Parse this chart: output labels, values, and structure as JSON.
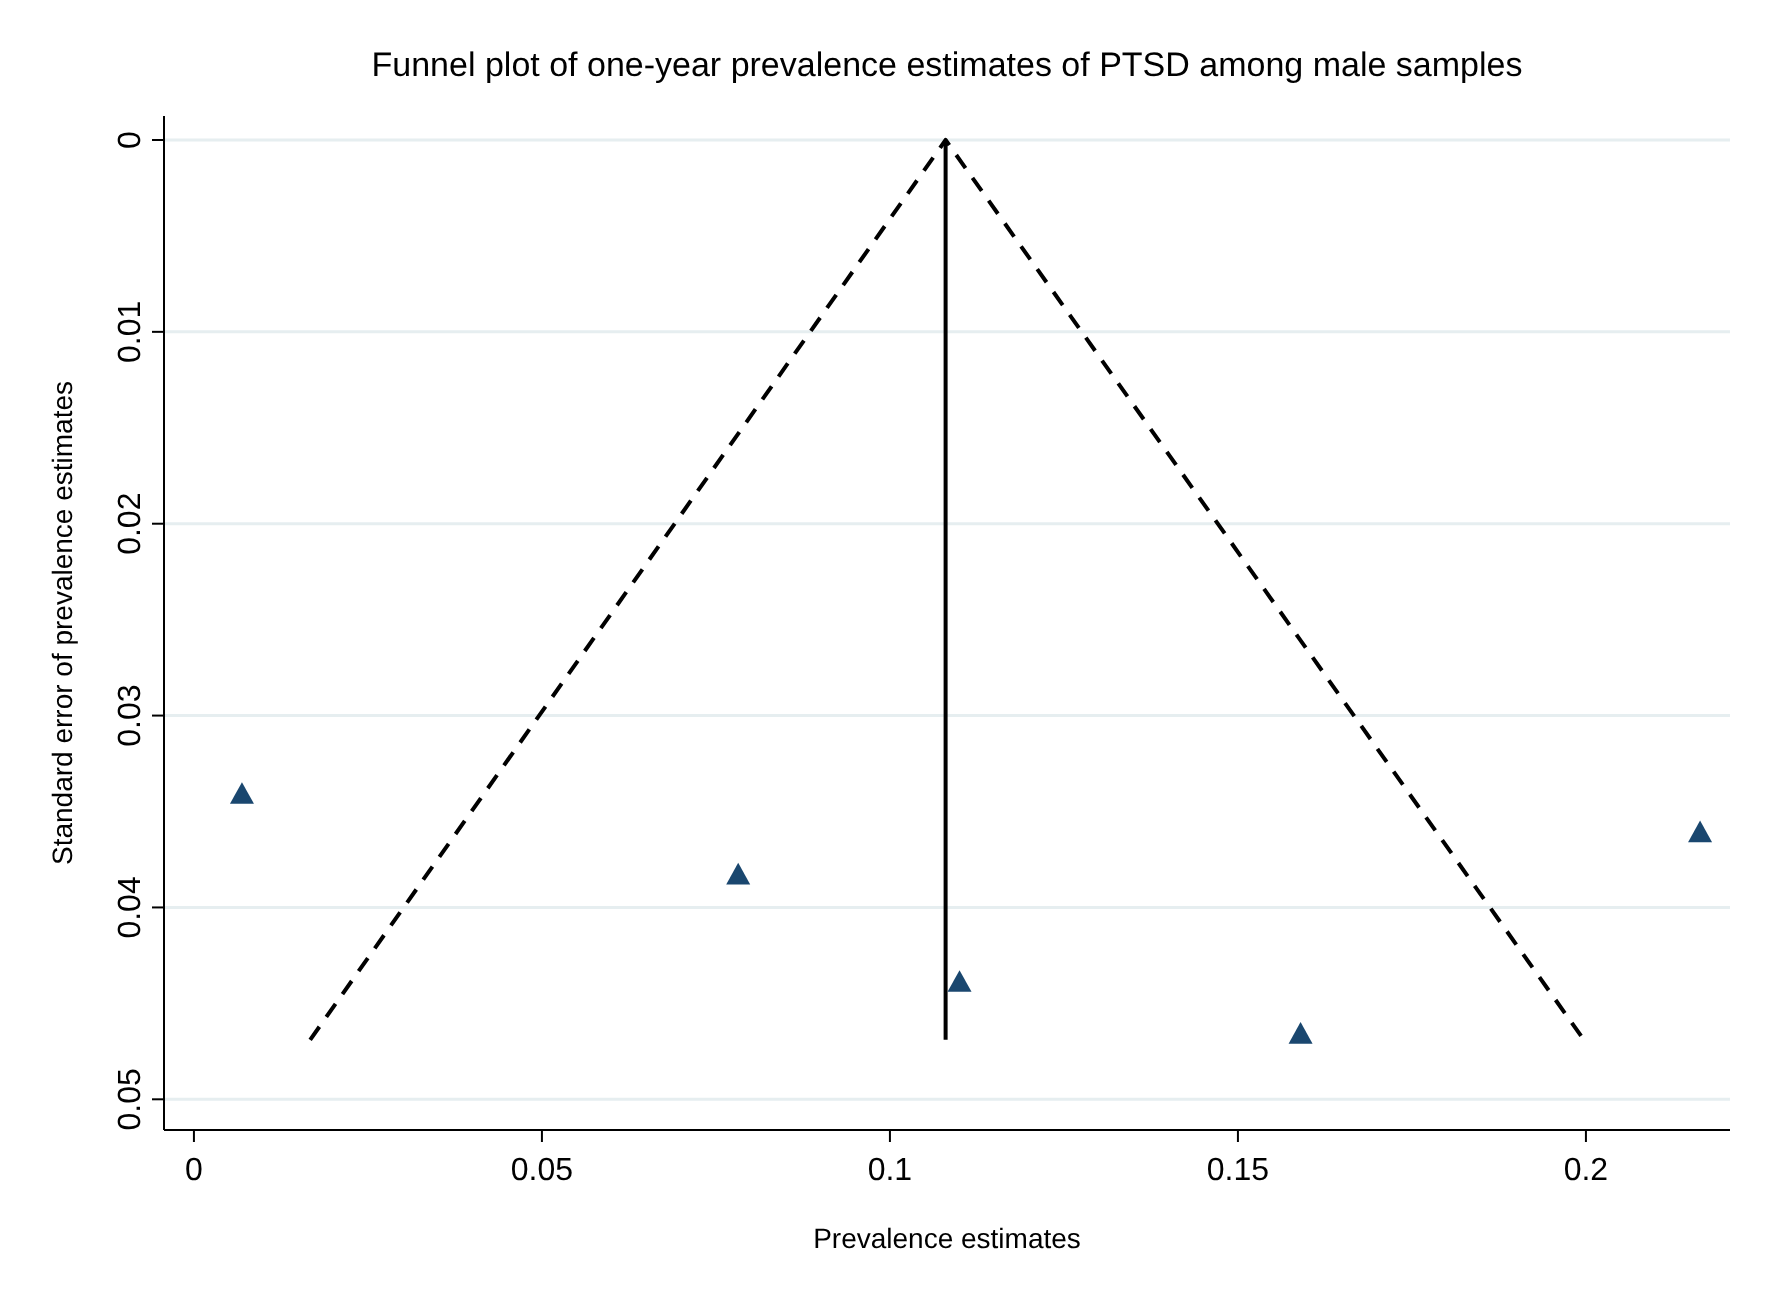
{
  "chart_data": {
    "type": "scatter",
    "title": "Funnel plot of one-year prevalence estimates of PTSD among male samples",
    "xlabel": "Prevalence estimates",
    "ylabel": "Standard error of prevalence estimates",
    "xlim": [
      -0.0043,
      0.2207
    ],
    "xticks": [
      0,
      0.05,
      0.1,
      0.15,
      0.2
    ],
    "ylim": [
      0.0516,
      -0.00125
    ],
    "yticks": [
      0,
      0.01,
      0.02,
      0.03,
      0.04,
      0.05
    ],
    "grid": "y",
    "series": [
      {
        "color": "#1a476f",
        "marker": "triangle",
        "x": [
          0.0069,
          0.0782,
          0.11,
          0.159,
          0.2164
        ],
        "values": [
          0.0341,
          0.0383,
          0.0439,
          0.0466,
          0.0361
        ]
      },
      {
        "type": "line",
        "color": "#000000",
        "marker": "none",
        "line_style": "dashed",
        "x": [
          0.0167,
          0.108,
          0.1997
        ],
        "values": [
          0.0469,
          0,
          0.0469
        ]
      },
      {
        "type": "line",
        "color": "#000000",
        "marker": "none",
        "line_style": "solid",
        "x": [
          0.108,
          0.108
        ],
        "values": [
          0,
          0.0469
        ]
      }
    ]
  }
}
